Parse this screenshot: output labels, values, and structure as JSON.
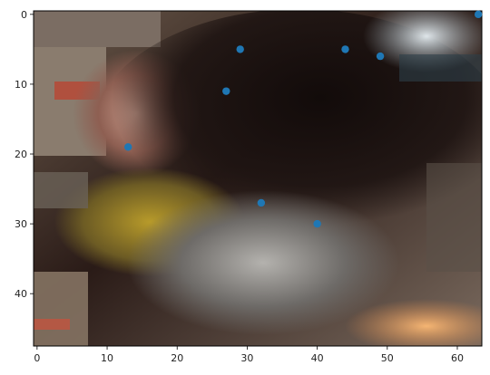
{
  "chart_data": {
    "type": "scatter",
    "title": "",
    "xlabel": "",
    "ylabel": "",
    "background": "pixelated image (64 x 48 grid): blurred close-up of a person's dark hair and cheek with a colourful yellow/grey patterned garment below",
    "xlim": [
      -0.5,
      63.5
    ],
    "ylim": [
      47.5,
      -0.5
    ],
    "y_inverted": true,
    "grid": false,
    "legend": "none",
    "xticks": [
      0,
      10,
      20,
      30,
      40,
      50,
      60
    ],
    "yticks": [
      0,
      10,
      20,
      30,
      40
    ],
    "xtick_labels": [
      "0",
      "10",
      "20",
      "30",
      "40",
      "50",
      "60"
    ],
    "ytick_labels": [
      "0",
      "10",
      "20",
      "30",
      "40"
    ],
    "marker_color": "#1f77b4",
    "series": [
      {
        "points": [
          {
            "x": 63,
            "y": 0
          },
          {
            "x": 29,
            "y": 5
          },
          {
            "x": 44,
            "y": 5
          },
          {
            "x": 49,
            "y": 6
          },
          {
            "x": 27,
            "y": 11
          },
          {
            "x": 13,
            "y": 19
          },
          {
            "x": 32,
            "y": 27
          },
          {
            "x": 40,
            "y": 30
          }
        ]
      }
    ]
  }
}
